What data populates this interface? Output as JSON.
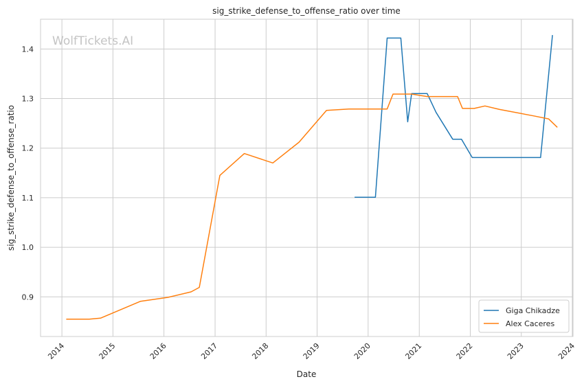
{
  "chart_data": {
    "type": "line",
    "title": "sig_strike_defense_to_offense_ratio over time",
    "xlabel": "Date",
    "ylabel": "sig_strike_defense_to_offense_ratio",
    "watermark": "WolfTickets.AI",
    "x_axis": "date",
    "xlim": [
      "2013-08-01",
      "2024-01-06"
    ],
    "ylim": [
      0.82,
      1.46
    ],
    "x_ticks": [
      "2014",
      "2015",
      "2016",
      "2017",
      "2018",
      "2019",
      "2020",
      "2021",
      "2022",
      "2023",
      "2024"
    ],
    "y_ticks": [
      "0.9",
      "1.0",
      "1.1",
      "1.2",
      "1.3",
      "1.4"
    ],
    "grid": true,
    "legend_position": "lower right",
    "series": [
      {
        "name": "Giga Chikadze",
        "color": "#1f77b4",
        "x": [
          "2019-09-26",
          "2020-02-22",
          "2020-05-16",
          "2020-08-22",
          "2020-10-10",
          "2020-11-07",
          "2021-02-27",
          "2021-05-01",
          "2021-08-28",
          "2021-10-30",
          "2022-01-15",
          "2023-05-19",
          "2023-08-12"
        ],
        "y": [
          1.101,
          1.101,
          1.422,
          1.422,
          1.253,
          1.31,
          1.31,
          1.272,
          1.218,
          1.218,
          1.181,
          1.181,
          1.428
        ]
      },
      {
        "name": "Alex Caceres",
        "color": "#ff7f0e",
        "x": [
          "2014-02-01",
          "2014-07-16",
          "2014-10-04",
          "2015-07-18",
          "2016-01-30",
          "2016-07-13",
          "2016-09-10",
          "2017-02-04",
          "2017-07-29",
          "2018-02-18",
          "2018-08-25",
          "2019-03-09",
          "2019-08-17",
          "2020-05-16",
          "2020-06-27",
          "2020-11-07",
          "2021-02-27",
          "2021-10-02",
          "2021-11-06",
          "2022-01-29",
          "2022-04-16",
          "2022-07-30",
          "2023-04-01",
          "2023-07-15",
          "2023-09-16"
        ],
        "y": [
          0.855,
          0.855,
          0.857,
          0.891,
          0.899,
          0.91,
          0.919,
          1.145,
          1.189,
          1.17,
          1.212,
          1.276,
          1.279,
          1.279,
          1.309,
          1.309,
          1.304,
          1.304,
          1.28,
          1.28,
          1.285,
          1.278,
          1.265,
          1.259,
          1.242
        ]
      }
    ]
  }
}
